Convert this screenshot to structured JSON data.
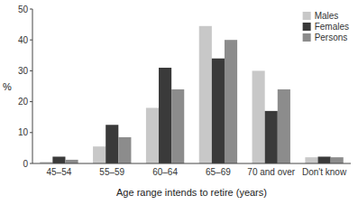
{
  "chart_data": {
    "type": "bar",
    "categories": [
      "45–54",
      "55–59",
      "60–64",
      "65–69",
      "70 and over",
      "Don't know"
    ],
    "series": [
      {
        "name": "Males",
        "color": "#c8c8c8",
        "values": [
          0.5,
          5.5,
          18,
          44.5,
          30,
          2
        ]
      },
      {
        "name": "Females",
        "color": "#3a3a3a",
        "values": [
          2.2,
          12.5,
          31,
          34,
          17,
          2.2
        ]
      },
      {
        "name": "Persons",
        "color": "#8c8c8c",
        "values": [
          1.2,
          8.5,
          24,
          40,
          24,
          2
        ]
      }
    ],
    "ylabel": "%",
    "xlabel": "Age range intends to retire (years)",
    "ylim": [
      0,
      50
    ],
    "yticks": [
      0,
      10,
      20,
      30,
      40,
      50
    ],
    "grid": false,
    "legend": "upper right"
  }
}
